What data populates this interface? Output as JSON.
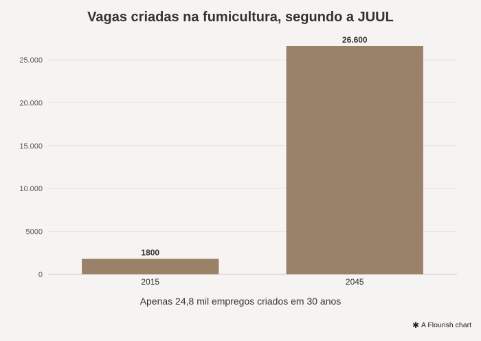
{
  "chart_data": {
    "type": "bar",
    "title": "Vagas criadas na fumicultura, segundo a JUUL",
    "xlabel": "Apenas 24,8 mil empregos criados em 30 anos",
    "ylabel": "",
    "categories": [
      "2015",
      "2045"
    ],
    "values": [
      1800,
      26600
    ],
    "value_labels": [
      "1800",
      "26.600"
    ],
    "ylim": [
      0,
      27000
    ],
    "yticks": [
      0,
      5000,
      10000,
      15000,
      20000,
      25000
    ],
    "ytick_labels": [
      "0",
      "5000",
      "10.000",
      "15.000",
      "20.000",
      "25.000"
    ],
    "grid": true,
    "bar_color": "#9a8268"
  },
  "credit": {
    "icon": "flourish-icon",
    "text": "A Flourish chart"
  }
}
